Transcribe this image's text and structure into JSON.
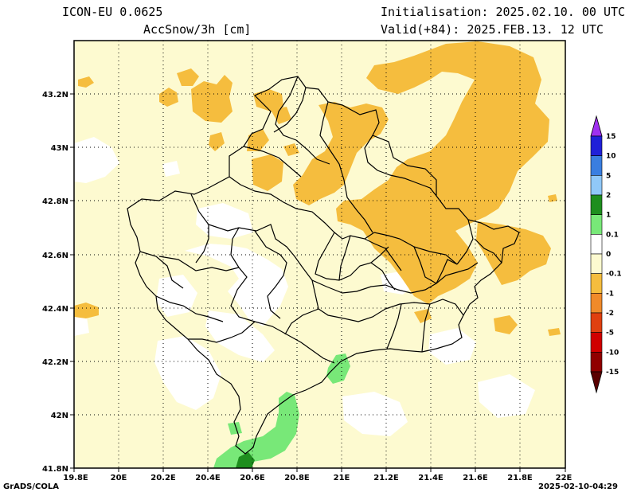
{
  "header": {
    "model": "ICON-EU 0.0625",
    "field": "AccSnow/3h [cm]",
    "init": "Initialisation: 2025.02.10. 00 UTC",
    "valid": "Valid(+84): 2025.FEB.13. 12 UTC"
  },
  "footer": {
    "left": "GrADS/COLA",
    "right": "2025-02-10-04:29"
  },
  "map": {
    "lat_ticks": [
      "43.2N",
      "43N",
      "42.8N",
      "42.6N",
      "42.4N",
      "42.2N",
      "42N",
      "41.8N"
    ],
    "lon_ticks": [
      "19.8E",
      "20E",
      "20.2E",
      "20.4E",
      "20.6E",
      "20.8E",
      "21E",
      "21.2E",
      "21.4E",
      "21.6E",
      "21.8E",
      "22E"
    ],
    "extent": {
      "lon_min": 19.8,
      "lon_max": 22.0,
      "lat_min": 41.8,
      "lat_max": 43.4
    }
  },
  "colorbar": {
    "labels": [
      "15",
      "10",
      "5",
      "2",
      "1",
      "0.1",
      "0",
      "-0.1",
      "-1",
      "-2",
      "-5",
      "-10",
      "-15"
    ],
    "colors": [
      "#2020d8",
      "#3a7ee0",
      "#90c8f8",
      "#1e8e1e",
      "#78e878",
      "#ffffff",
      "#fdfad0",
      "#f5bd3e",
      "#f08a2a",
      "#e04010",
      "#d00000",
      "#900000"
    ],
    "top_color": "#a030f0",
    "bottom_color": "#5a0000"
  },
  "colors": {
    "pale": "#fdfad0",
    "orange": "#f5bd3e",
    "green": "#78e878",
    "darkgreen": "#1e8e1e"
  }
}
